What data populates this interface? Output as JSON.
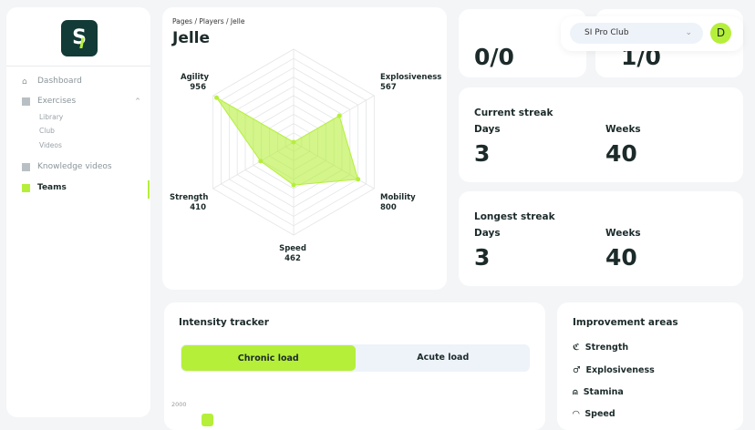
{
  "sidebar": {
    "logo": "SI",
    "items": [
      {
        "label": "Dashboard",
        "icon": "home-icon"
      },
      {
        "label": "Exercises",
        "icon": "grid-icon",
        "expanded": true,
        "children": [
          "Library",
          "Club",
          "Videos"
        ]
      },
      {
        "label": "Knowledge videos",
        "icon": "grid-icon"
      },
      {
        "label": "Teams",
        "icon": "grid-icon",
        "active": true
      }
    ]
  },
  "header": {
    "breadcrumb": "Pages  /  Players / Jelle",
    "title": "Jelle",
    "club": "SI Pro Club",
    "avatar": "D"
  },
  "top_cards": [
    "0/0",
    "1/0"
  ],
  "current_streak": {
    "title": "Current streak",
    "days_label": "Days",
    "days": "3",
    "weeks_label": "Weeks",
    "weeks": "40"
  },
  "longest_streak": {
    "title": "Longest streak",
    "days_label": "Days",
    "days": "3",
    "weeks_label": "Weeks",
    "weeks": "40"
  },
  "intensity": {
    "title": "Intensity tracker",
    "tabs": [
      "Chronic load",
      "Acute load"
    ],
    "active_tab": "Chronic load",
    "y_tick": "2000"
  },
  "improvement": {
    "title": "Improvement areas",
    "items": [
      {
        "label": "Strength",
        "icon": "muscle-icon"
      },
      {
        "label": "Explosiveness",
        "icon": "male-icon"
      },
      {
        "label": "Stamina",
        "icon": "lungs-icon"
      },
      {
        "label": "Speed",
        "icon": "speedometer-icon"
      }
    ]
  },
  "colors": {
    "accent": "#b5ef3a",
    "logo_bg": "#123a36"
  },
  "chart_data": {
    "type": "radar",
    "max": 1000,
    "axes": [
      {
        "label": "",
        "value": 0
      },
      {
        "label": "Explosiveness",
        "value": 567
      },
      {
        "label": "Mobility",
        "value": 800
      },
      {
        "label": "Speed",
        "value": 462
      },
      {
        "label": "Strength",
        "value": 410
      },
      {
        "label": "Agility",
        "value": 956
      }
    ]
  }
}
